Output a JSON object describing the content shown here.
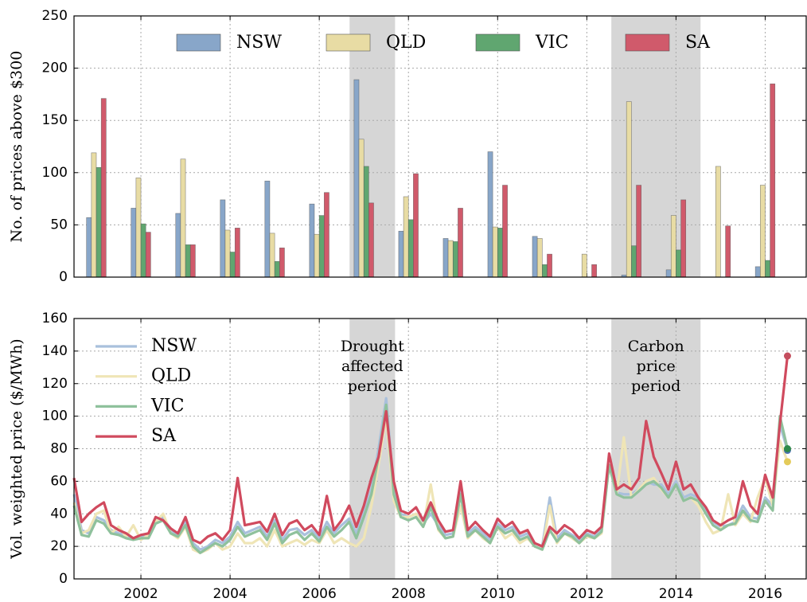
{
  "chart_data": [
    {
      "type": "bar",
      "ylabel": "No. of prices above $300",
      "x": [
        2001,
        2002,
        2003,
        2004,
        2005,
        2006,
        2007,
        2008,
        2009,
        2010,
        2011,
        2012,
        2013,
        2014,
        2015,
        2016
      ],
      "series": [
        {
          "name": "NSW",
          "color": "#88a6c9",
          "values": [
            57,
            66,
            61,
            74,
            92,
            70,
            189,
            44,
            37,
            120,
            39,
            0,
            2,
            7,
            0,
            10
          ]
        },
        {
          "name": "QLD",
          "color": "#e8dca4",
          "values": [
            119,
            95,
            113,
            45,
            42,
            41,
            132,
            77,
            35,
            48,
            37,
            22,
            168,
            59,
            106,
            88
          ]
        },
        {
          "name": "VIC",
          "color": "#60a670",
          "values": [
            105,
            51,
            31,
            24,
            15,
            59,
            106,
            55,
            34,
            47,
            12,
            0,
            30,
            26,
            0,
            16
          ]
        },
        {
          "name": "SA",
          "color": "#d05a6b",
          "values": [
            171,
            43,
            31,
            47,
            28,
            81,
            71,
            99,
            66,
            88,
            22,
            12,
            88,
            74,
            49,
            185
          ]
        }
      ],
      "xlim": [
        2000.5,
        2016.92
      ],
      "xticks": [
        2002,
        2004,
        2006,
        2008,
        2010,
        2012,
        2014,
        2016
      ],
      "show_xtick_labels": false,
      "ylim": [
        0,
        250
      ],
      "yticks": [
        0,
        50,
        100,
        150,
        200,
        250
      ],
      "grid": true,
      "legend": "upper center",
      "shaded_periods": [
        {
          "start": 2006.68,
          "end": 2007.7
        },
        {
          "start": 2012.55,
          "end": 2014.55
        }
      ]
    },
    {
      "type": "line",
      "ylabel": "Vol. weighted price ($/MWh)",
      "x": [
        2000.5,
        2000.67,
        2000.83,
        2001,
        2001.17,
        2001.33,
        2001.5,
        2001.67,
        2001.83,
        2002,
        2002.17,
        2002.33,
        2002.5,
        2002.67,
        2002.83,
        2003,
        2003.17,
        2003.33,
        2003.5,
        2003.67,
        2003.83,
        2004,
        2004.17,
        2004.33,
        2004.5,
        2004.67,
        2004.83,
        2005,
        2005.17,
        2005.33,
        2005.5,
        2005.67,
        2005.83,
        2006,
        2006.17,
        2006.33,
        2006.5,
        2006.67,
        2006.83,
        2007,
        2007.17,
        2007.33,
        2007.5,
        2007.67,
        2007.83,
        2008,
        2008.17,
        2008.33,
        2008.5,
        2008.67,
        2008.83,
        2009,
        2009.17,
        2009.33,
        2009.5,
        2009.67,
        2009.83,
        2010,
        2010.17,
        2010.33,
        2010.5,
        2010.67,
        2010.83,
        2011,
        2011.17,
        2011.33,
        2011.5,
        2011.67,
        2011.83,
        2012,
        2012.17,
        2012.33,
        2012.5,
        2012.67,
        2012.83,
        2013,
        2013.17,
        2013.33,
        2013.5,
        2013.67,
        2013.83,
        2014,
        2014.17,
        2014.33,
        2014.5,
        2014.67,
        2014.83,
        2015,
        2015.17,
        2015.33,
        2015.5,
        2015.67,
        2015.83,
        2016,
        2016.17,
        2016.33,
        2016.5
      ],
      "series": [
        {
          "name": "NSW",
          "color": "#a9c0dc",
          "values": [
            52,
            30,
            28,
            38,
            36,
            30,
            28,
            27,
            25,
            26,
            26,
            36,
            38,
            30,
            27,
            35,
            22,
            18,
            20,
            24,
            22,
            26,
            35,
            28,
            30,
            32,
            26,
            36,
            24,
            30,
            31,
            27,
            30,
            25,
            35,
            28,
            33,
            37,
            28,
            40,
            55,
            80,
            111,
            55,
            40,
            38,
            40,
            34,
            40,
            33,
            27,
            28,
            55,
            28,
            32,
            28,
            24,
            34,
            30,
            32,
            26,
            28,
            22,
            20,
            50,
            25,
            30,
            27,
            24,
            28,
            26,
            30,
            70,
            53,
            52,
            52,
            55,
            60,
            58,
            58,
            52,
            60,
            50,
            52,
            50,
            42,
            35,
            32,
            33,
            35,
            45,
            38,
            37,
            50,
            45,
            95,
            79
          ],
          "end_color": "#4c72b0"
        },
        {
          "name": "QLD",
          "color": "#efe5b6",
          "values": [
            47,
            28,
            30,
            40,
            42,
            28,
            32,
            26,
            33,
            24,
            27,
            35,
            40,
            28,
            25,
            32,
            18,
            16,
            18,
            22,
            18,
            20,
            28,
            22,
            22,
            25,
            20,
            30,
            20,
            22,
            24,
            21,
            24,
            22,
            30,
            22,
            25,
            22,
            20,
            25,
            45,
            70,
            100,
            48,
            38,
            38,
            40,
            32,
            58,
            30,
            25,
            26,
            45,
            25,
            30,
            25,
            22,
            32,
            25,
            28,
            22,
            25,
            20,
            18,
            45,
            22,
            28,
            25,
            22,
            26,
            25,
            28,
            70,
            52,
            87,
            50,
            55,
            60,
            62,
            55,
            50,
            58,
            48,
            50,
            45,
            35,
            28,
            30,
            52,
            33,
            40,
            35,
            50,
            62,
            45,
            85,
            72
          ],
          "end_color": "#e4cb5a"
        },
        {
          "name": "VIC",
          "color": "#8fc19c",
          "values": [
            45,
            27,
            26,
            36,
            34,
            28,
            27,
            25,
            24,
            25,
            25,
            34,
            36,
            28,
            26,
            33,
            20,
            16,
            19,
            22,
            20,
            24,
            32,
            26,
            28,
            30,
            24,
            34,
            22,
            27,
            29,
            24,
            28,
            23,
            32,
            26,
            30,
            35,
            25,
            38,
            52,
            75,
            107,
            52,
            38,
            36,
            38,
            32,
            44,
            31,
            25,
            26,
            52,
            26,
            30,
            26,
            22,
            32,
            28,
            30,
            24,
            26,
            20,
            18,
            30,
            23,
            28,
            26,
            22,
            27,
            25,
            29,
            70,
            52,
            50,
            50,
            54,
            58,
            60,
            56,
            50,
            58,
            48,
            50,
            48,
            40,
            33,
            30,
            33,
            34,
            42,
            36,
            35,
            48,
            42,
            100,
            80
          ],
          "end_color": "#2e8a4a"
        },
        {
          "name": "SA",
          "color": "#d04a5e",
          "values": [
            62,
            35,
            40,
            44,
            47,
            33,
            30,
            28,
            25,
            27,
            28,
            38,
            36,
            31,
            28,
            38,
            24,
            22,
            26,
            28,
            24,
            30,
            62,
            33,
            34,
            35,
            29,
            40,
            27,
            34,
            36,
            30,
            33,
            27,
            51,
            30,
            36,
            45,
            32,
            45,
            62,
            75,
            103,
            60,
            42,
            40,
            44,
            36,
            47,
            36,
            29,
            30,
            60,
            30,
            35,
            30,
            26,
            37,
            32,
            35,
            28,
            30,
            22,
            20,
            32,
            28,
            33,
            30,
            25,
            30,
            28,
            32,
            77,
            55,
            58,
            55,
            62,
            97,
            75,
            65,
            55,
            72,
            55,
            58,
            50,
            44,
            36,
            33,
            36,
            38,
            60,
            45,
            40,
            64,
            50,
            95,
            137
          ],
          "end_color": "#c44e5e"
        }
      ],
      "xlim": [
        2000.5,
        2016.92
      ],
      "xticks": [
        2002,
        2004,
        2006,
        2008,
        2010,
        2012,
        2014,
        2016
      ],
      "show_xtick_labels": true,
      "ylim": [
        0,
        160
      ],
      "yticks": [
        0,
        20,
        40,
        60,
        80,
        100,
        120,
        140,
        160
      ],
      "grid": true,
      "legend": "upper left",
      "end_markers": true,
      "shaded_periods": [
        {
          "start": 2006.68,
          "end": 2007.7,
          "label": [
            "Drought",
            "affected",
            "period"
          ]
        },
        {
          "start": 2012.55,
          "end": 2014.55,
          "label": [
            "Carbon",
            "price",
            "period"
          ]
        }
      ]
    }
  ]
}
